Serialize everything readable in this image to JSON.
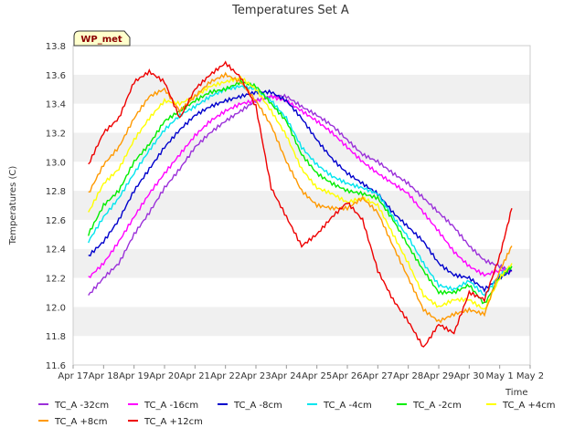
{
  "chart_data": {
    "type": "line",
    "title": "Temperatures Set A",
    "xlabel": "Time",
    "ylabel": "Temperatures (C)",
    "badge": "WP_met",
    "ylim": [
      11.6,
      13.8
    ],
    "yticks": [
      "11.6",
      "11.8",
      "12.0",
      "12.2",
      "12.4",
      "12.6",
      "12.8",
      "13.0",
      "13.2",
      "13.4",
      "13.6",
      "13.8"
    ],
    "xlim": [
      0,
      15
    ],
    "xticks": [
      "Apr 17",
      "Apr 18",
      "Apr 19",
      "Apr 20",
      "Apr 21",
      "Apr 22",
      "Apr 23",
      "Apr 24",
      "Apr 25",
      "Apr 26",
      "Apr 27",
      "Apr 28",
      "Apr 29",
      "Apr 30",
      "May 1",
      "May 2"
    ],
    "x": [
      0.5,
      1,
      1.5,
      2,
      2.5,
      3,
      3.5,
      4,
      4.5,
      5,
      5.5,
      6,
      6.5,
      7,
      7.5,
      8,
      8.5,
      9,
      9.5,
      10,
      10.5,
      11,
      11.5,
      12,
      12.5,
      13,
      13.5,
      14,
      14.4
    ],
    "grid": "horizontal bands",
    "legend_position": "bottom",
    "series": [
      {
        "name": "TC_A -32cm",
        "color": "#9b30d9",
        "values": [
          12.08,
          12.2,
          12.3,
          12.5,
          12.65,
          12.82,
          12.95,
          13.1,
          13.2,
          13.28,
          13.35,
          13.42,
          13.45,
          13.45,
          13.38,
          13.32,
          13.25,
          13.15,
          13.05,
          13.0,
          12.92,
          12.85,
          12.75,
          12.65,
          12.55,
          12.42,
          12.32,
          12.28,
          12.25
        ]
      },
      {
        "name": "TC_A -16cm",
        "color": "#ff00ff",
        "values": [
          12.2,
          12.3,
          12.45,
          12.62,
          12.78,
          12.92,
          13.05,
          13.18,
          13.28,
          13.35,
          13.4,
          13.42,
          13.45,
          13.42,
          13.35,
          13.28,
          13.2,
          13.1,
          13.0,
          12.92,
          12.85,
          12.78,
          12.65,
          12.52,
          12.38,
          12.28,
          12.22,
          12.25,
          12.25
        ]
      },
      {
        "name": "TC_A -8cm",
        "color": "#0000cc",
        "values": [
          12.35,
          12.45,
          12.6,
          12.8,
          12.95,
          13.1,
          13.22,
          13.32,
          13.38,
          13.42,
          13.45,
          13.48,
          13.48,
          13.42,
          13.3,
          13.15,
          13.02,
          12.92,
          12.85,
          12.78,
          12.65,
          12.55,
          12.45,
          12.3,
          12.22,
          12.2,
          12.12,
          12.2,
          12.25
        ]
      },
      {
        "name": "TC_A -4cm",
        "color": "#00e5ee",
        "values": [
          12.45,
          12.62,
          12.75,
          12.92,
          13.08,
          13.22,
          13.32,
          13.38,
          13.45,
          13.5,
          13.52,
          13.5,
          13.42,
          13.3,
          13.1,
          12.98,
          12.9,
          12.85,
          12.82,
          12.78,
          12.62,
          12.48,
          12.3,
          12.15,
          12.12,
          12.18,
          12.08,
          12.22,
          12.28
        ]
      },
      {
        "name": "TC_A -2cm",
        "color": "#00ee00",
        "values": [
          12.5,
          12.7,
          12.8,
          13.0,
          13.12,
          13.28,
          13.35,
          13.42,
          13.48,
          13.5,
          13.55,
          13.52,
          13.4,
          13.28,
          13.05,
          12.92,
          12.85,
          12.8,
          12.78,
          12.75,
          12.6,
          12.42,
          12.25,
          12.1,
          12.1,
          12.15,
          12.02,
          12.2,
          12.28
        ]
      },
      {
        "name": "TC_A +4cm",
        "color": "#ffff00",
        "values": [
          12.65,
          12.85,
          12.95,
          13.15,
          13.3,
          13.42,
          13.4,
          13.45,
          13.52,
          13.55,
          13.58,
          13.5,
          13.35,
          13.18,
          12.95,
          12.82,
          12.78,
          12.72,
          12.75,
          12.7,
          12.5,
          12.3,
          12.08,
          12.0,
          12.05,
          12.05,
          11.98,
          12.2,
          12.3
        ]
      },
      {
        "name": "TC_A +8cm",
        "color": "#ff9900",
        "values": [
          12.78,
          12.98,
          13.1,
          13.3,
          13.45,
          13.5,
          13.35,
          13.45,
          13.55,
          13.6,
          13.55,
          13.42,
          13.25,
          13.0,
          12.8,
          12.7,
          12.68,
          12.68,
          12.75,
          12.65,
          12.42,
          12.2,
          11.98,
          11.9,
          11.95,
          11.98,
          11.95,
          12.25,
          12.42
        ]
      },
      {
        "name": "TC_A +12cm",
        "color": "#ee0000",
        "values": [
          12.98,
          13.2,
          13.3,
          13.55,
          13.62,
          13.55,
          13.3,
          13.5,
          13.6,
          13.68,
          13.58,
          13.38,
          12.82,
          12.62,
          12.42,
          12.5,
          12.62,
          12.72,
          12.6,
          12.25,
          12.05,
          11.9,
          11.72,
          11.88,
          11.82,
          12.1,
          12.05,
          12.35,
          12.68
        ]
      }
    ]
  }
}
